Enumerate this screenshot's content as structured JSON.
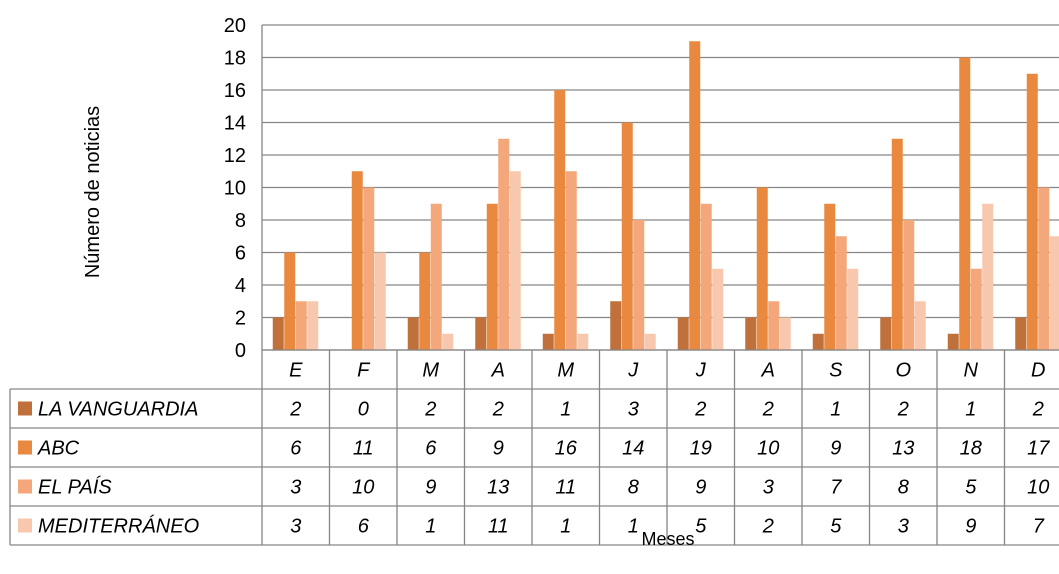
{
  "chart_data": {
    "type": "bar",
    "ylabel": "Número de noticias",
    "xlabel": "Meses",
    "ylim": [
      0,
      20
    ],
    "ytick_step": 2,
    "grid": true,
    "legend": "data-table",
    "categories": [
      "E",
      "F",
      "M",
      "A",
      "M",
      "J",
      "J",
      "A",
      "S",
      "O",
      "N",
      "D"
    ],
    "series": [
      {
        "name": "LA VANGUARDIA",
        "color": "#C0703A",
        "values": [
          2,
          0,
          2,
          2,
          1,
          3,
          2,
          2,
          1,
          2,
          1,
          2
        ]
      },
      {
        "name": "ABC",
        "color": "#E8893F",
        "values": [
          6,
          11,
          6,
          9,
          16,
          14,
          19,
          10,
          9,
          13,
          18,
          17
        ]
      },
      {
        "name": "EL PAÍS",
        "color": "#F3A77A",
        "values": [
          3,
          10,
          9,
          13,
          11,
          8,
          9,
          3,
          7,
          8,
          5,
          10
        ]
      },
      {
        "name": "MEDITERRÁNEO",
        "color": "#F8C8AE",
        "values": [
          3,
          6,
          1,
          11,
          1,
          1,
          5,
          2,
          5,
          3,
          9,
          7
        ]
      }
    ]
  }
}
